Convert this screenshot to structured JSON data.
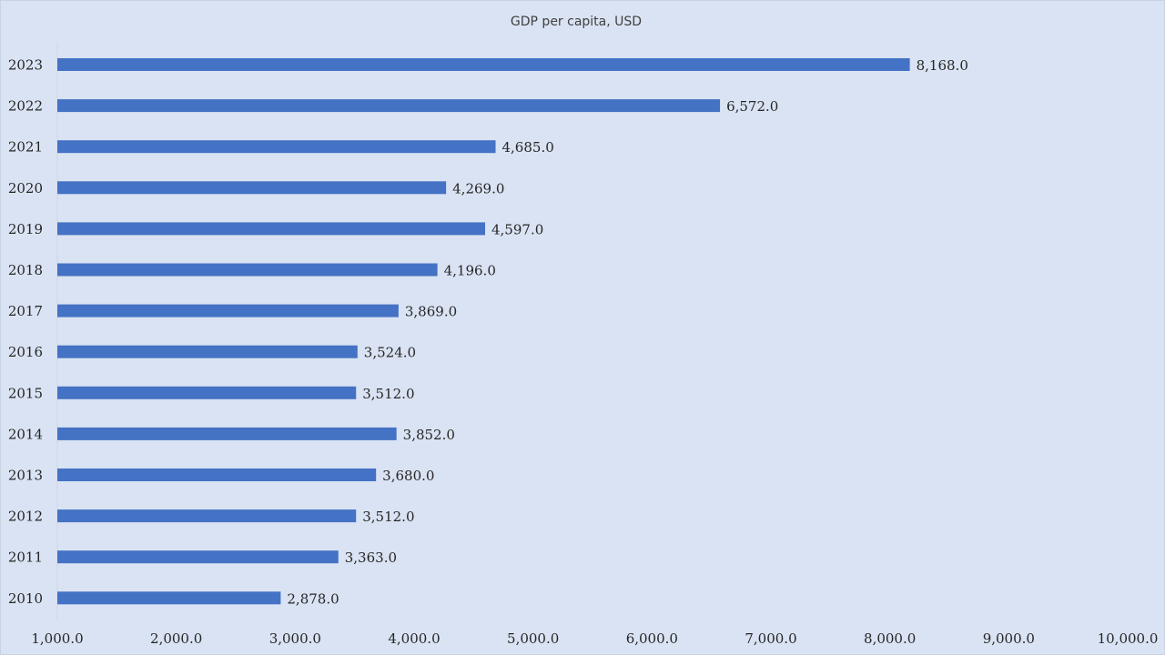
{
  "chart_data": {
    "type": "bar",
    "orientation": "horizontal",
    "title": "GDP per capita, USD",
    "xlabel": "",
    "ylabel": "",
    "categories": [
      "2023",
      "2022",
      "2021",
      "2020",
      "2019",
      "2018",
      "2017",
      "2016",
      "2015",
      "2014",
      "2013",
      "2012",
      "2011",
      "2010"
    ],
    "values": [
      8168.0,
      6572.0,
      4685.0,
      4269.0,
      4597.0,
      4196.0,
      3869.0,
      3524.0,
      3512.0,
      3852.0,
      3680.0,
      3512.0,
      3363.0,
      2878.0
    ],
    "data_labels": [
      "8,168.0",
      "6,572.0",
      "4,685.0",
      "4,269.0",
      "4,597.0",
      "4,196.0",
      "3,869.0",
      "3,524.0",
      "3,512.0",
      "3,852.0",
      "3,680.0",
      "3,512.0",
      "3,363.0",
      "2,878.0"
    ],
    "highlight_index": 0,
    "xlim": [
      1000,
      10000
    ],
    "x_ticks": [
      1000,
      2000,
      3000,
      4000,
      5000,
      6000,
      7000,
      8000,
      9000,
      10000
    ],
    "x_tick_labels": [
      "1,000.0",
      "2,000.0",
      "3,000.0",
      "4,000.0",
      "5,000.0",
      "6,000.0",
      "7,000.0",
      "8,000.0",
      "9,000.0",
      "10,000.0"
    ],
    "grid": false,
    "legend": "none",
    "colors": {
      "bar": "#4472c4",
      "highlight_label": "#c00000",
      "label": "#262626",
      "background": "#dae3f3",
      "axis_line": "#d0d7e5"
    }
  }
}
